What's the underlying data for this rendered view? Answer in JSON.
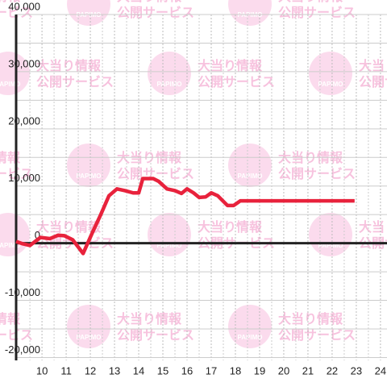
{
  "chart_data": {
    "type": "line",
    "x": [
      8.93,
      9.2,
      9.5,
      9.93,
      10.33,
      10.67,
      10.93,
      11.27,
      11.7,
      12.1,
      12.43,
      12.77,
      13.1,
      13.43,
      13.77,
      14.0,
      14.17,
      14.6,
      14.83,
      15.17,
      15.5,
      15.77,
      16.0,
      16.27,
      16.5,
      16.77,
      17.0,
      17.27,
      17.67,
      17.93,
      18.2,
      22.93
    ],
    "series": [
      {
        "color": "#e8223c",
        "values": [
          300,
          -100,
          -400,
          1000,
          800,
          1400,
          1300,
          600,
          -1800,
          2000,
          5000,
          8300,
          9500,
          9200,
          8800,
          8800,
          11300,
          11300,
          10800,
          9500,
          9200,
          8700,
          9500,
          8800,
          8000,
          8100,
          8800,
          8300,
          6600,
          6600,
          7400,
          7400
        ]
      }
    ],
    "xlim": [
      8.93,
      24.27
    ],
    "xticks": [
      10,
      11,
      12,
      13,
      14,
      15,
      16,
      17,
      18,
      19,
      20,
      21,
      22,
      23,
      24
    ],
    "ylim": [
      -20500,
      40000
    ],
    "yticks": [
      {
        "value": -20000,
        "label": "-20,000"
      },
      {
        "value": -10000,
        "label": "-10,000"
      },
      0,
      {
        "value": 10000,
        "label": "10,000"
      },
      {
        "value": 20000,
        "label": "20,000"
      },
      {
        "value": 30000,
        "label": "30,000"
      },
      {
        "value": 40000,
        "label": "40,000"
      }
    ],
    "grid": true,
    "watermark": {
      "logo": "PAPIMO",
      "lines": [
        "大当り情報",
        "公開サービス"
      ]
    }
  }
}
